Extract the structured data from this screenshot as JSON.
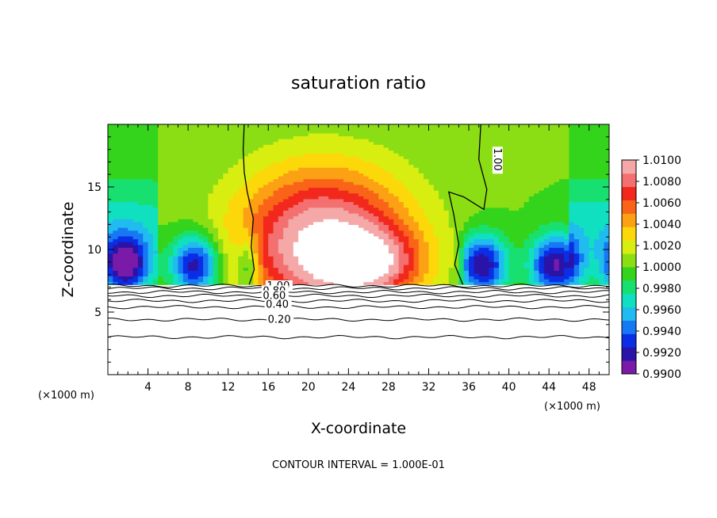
{
  "chart_data": {
    "type": "heatmap",
    "title": "saturation ratio",
    "xlabel": "X-coordinate",
    "ylabel": "Z-coordinate",
    "x_unit": "(×1000 m)",
    "xlim": [
      0,
      50
    ],
    "ylim": [
      0,
      20
    ],
    "x_ticks": [
      4,
      8,
      12,
      16,
      20,
      24,
      28,
      32,
      36,
      40,
      44,
      48
    ],
    "y_ticks": [
      5,
      10,
      15
    ],
    "colorbar": {
      "min": 0.99,
      "max": 1.01,
      "ticks": [
        "1.0100",
        "1.0080",
        "1.0060",
        "1.0040",
        "1.0020",
        "1.0000",
        "0.9980",
        "0.9960",
        "0.9940",
        "0.9920",
        "0.9900"
      ],
      "colors": [
        "#7a1aa8",
        "#2a14a8",
        "#0a2ee6",
        "#1678f2",
        "#20bcf0",
        "#10e0c0",
        "#18e070",
        "#34d41c",
        "#8cde14",
        "#d8ee10",
        "#fcd80a",
        "#fca014",
        "#fa6418",
        "#f2281c",
        "#f47070",
        "#f4a8a8"
      ]
    },
    "contour_interval": "CONTOUR INTERVAL = 1.000E-01",
    "contour_labels": [
      "1.00",
      "0.80",
      "0.60",
      "0.40",
      "0.20",
      "1.00",
      "1.00"
    ],
    "footer": {
      "x_unit_left": "(×1000 m)",
      "x_unit_right": "(×1000 m)"
    }
  }
}
